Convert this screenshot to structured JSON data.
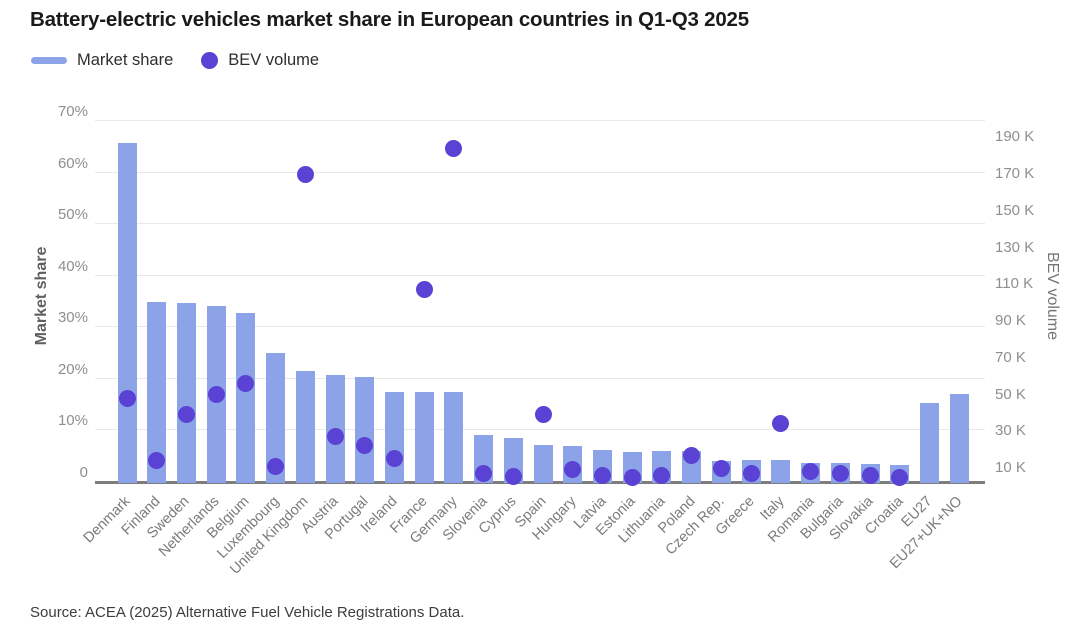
{
  "title": "Battery-electric vehicles market share in European countries in Q1-Q3 2025",
  "source": "Source: ACEA (2025) Alternative Fuel Vehicle Registrations Data.",
  "colors": {
    "bar": "#8da3e8",
    "dot": "#5a42d4",
    "grid": "#e9e9e9",
    "axis_line": "#7d7d7d",
    "tick_text": "#8f8f8f",
    "x_label_text": "#7b7b7b",
    "title_text": "#1a1a1a"
  },
  "chart_data": {
    "type": "bar",
    "title": "Battery-electric vehicles market share in European countries in Q1-Q3 2025",
    "categories": [
      "Denmark",
      "Finland",
      "Sweden",
      "Netherlands",
      "Belgium",
      "Luxembourg",
      "United Kingdom",
      "Austria",
      "Portugal",
      "Ireland",
      "France",
      "Germany",
      "Slovenia",
      "Cyprus",
      "Spain",
      "Hungary",
      "Latvia",
      "Estonia",
      "Lithuania",
      "Poland",
      "Czech Rep.",
      "Greece",
      "Italy",
      "Romania",
      "Bulgaria",
      "Slovakia",
      "Croatia",
      "EU27",
      "EU27+UK+NO"
    ],
    "category_keys": [
      "denmark",
      "finland",
      "sweden",
      "netherlands",
      "belgium",
      "luxembourg",
      "united-kingdom",
      "austria",
      "portugal",
      "ireland",
      "france",
      "germany",
      "slovenia",
      "cyprus",
      "spain",
      "hungary",
      "latvia",
      "estonia",
      "lithuania",
      "poland",
      "czech-rep",
      "greece",
      "italy",
      "romania",
      "bulgaria",
      "slovakia",
      "croatia",
      "eu27",
      "eu27-uk-no"
    ],
    "series": [
      {
        "name": "Market share",
        "type": "bar",
        "axis": "left",
        "unit": "%",
        "values": [
          65.6,
          34.8,
          34.5,
          34.0,
          32.6,
          24.9,
          21.4,
          20.5,
          20.2,
          17.2,
          17.2,
          17.2,
          8.9,
          8.4,
          6.9,
          6.8,
          6.0,
          5.6,
          5.8,
          5.9,
          3.8,
          4.0,
          4.1,
          3.5,
          3.4,
          3.2,
          3.1,
          15.1,
          16.9
        ]
      },
      {
        "name": "BEV volume",
        "type": "scatter",
        "axis": "right",
        "unit": "K",
        "values": [
          48,
          14,
          39,
          50,
          56,
          11,
          170,
          27,
          22,
          15,
          107,
          184,
          7,
          5.5,
          39,
          9,
          6,
          5,
          6,
          17,
          10,
          7,
          34,
          8,
          7,
          6,
          5,
          null,
          null
        ]
      }
    ],
    "left_axis": {
      "title": "Market share",
      "min": 0,
      "max": 70,
      "tick_step": 10,
      "tick_values": [
        0,
        10,
        20,
        30,
        40,
        50,
        60,
        70
      ],
      "tick_labels": [
        "0",
        "10%",
        "20%",
        "30%",
        "40%",
        "50%",
        "60%",
        "70%"
      ]
    },
    "right_axis": {
      "title": "BEV volume",
      "min": 10,
      "max": 190,
      "tick_step": 20,
      "tick_values": [
        10,
        30,
        50,
        70,
        90,
        110,
        130,
        150,
        170,
        190
      ],
      "tick_labels": [
        "10 K",
        "30 K",
        "50 K",
        "70 K",
        "90 K",
        "110 K",
        "130 K",
        "150 K",
        "170 K",
        "190 K"
      ]
    },
    "grid": true,
    "legend_position": "top-left"
  }
}
